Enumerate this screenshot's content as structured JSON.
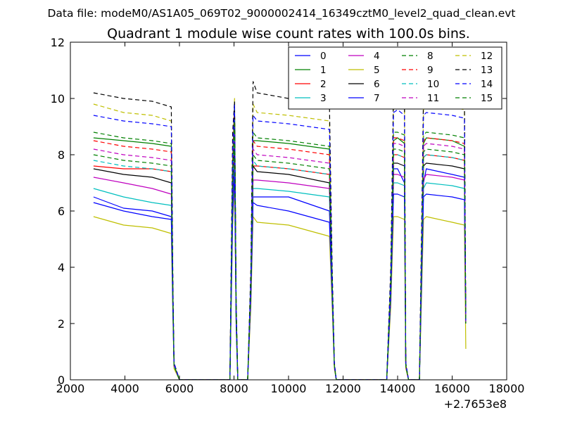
{
  "chart_data": {
    "type": "line",
    "suptitle": "Data file: modeM0/AS1A05_069T02_9000002414_16349cztM0_level2_quad_clean.evt",
    "title": "Quadrant 1 module wise count rates with 100.0s bins.",
    "xlabel": "",
    "ylabel": "",
    "xlim": [
      2000,
      18000
    ],
    "ylim": [
      0,
      12
    ],
    "x_offset_label": "+2.7653e8",
    "x_ticks": [
      2000,
      4000,
      6000,
      8000,
      10000,
      12000,
      14000,
      16000,
      18000
    ],
    "x_tick_labels": [
      "2000",
      "4000",
      "6000",
      "8000",
      "10000",
      "12000",
      "14000",
      "16000",
      "18000"
    ],
    "y_ticks": [
      0,
      2,
      4,
      6,
      8,
      10,
      12
    ],
    "y_tick_labels": [
      "0",
      "2",
      "4",
      "6",
      "8",
      "10",
      "12"
    ],
    "grid": false,
    "legend_placement": "top-right",
    "legend_columns": 4,
    "x": [
      2850,
      3950,
      5000,
      5700,
      5760,
      5800,
      6000,
      7850,
      7950,
      8020,
      8080,
      8140,
      8200,
      8400,
      8500,
      8620,
      8700,
      8850,
      10000,
      11500,
      11600,
      11680,
      11750,
      12000,
      13600,
      13750,
      13850,
      14000,
      14250,
      14300,
      14400,
      14800,
      14950,
      15050,
      16000,
      16450,
      16500
    ],
    "series": [
      {
        "name": "0",
        "color": "#0000ff",
        "dash": "solid",
        "values": [
          6.5,
          6.1,
          6.0,
          5.8,
          2.5,
          0.5,
          0.0,
          0.0,
          6.0,
          7.5,
          2.0,
          0.0,
          0.0,
          0.0,
          0.0,
          3.0,
          6.5,
          6.5,
          6.5,
          6.0,
          3.0,
          0.5,
          0.0,
          0.0,
          0.0,
          3.0,
          7.5,
          7.5,
          7.0,
          0.5,
          0.0,
          0.0,
          7.0,
          7.5,
          7.3,
          7.2,
          2.0
        ]
      },
      {
        "name": "1",
        "color": "#008000",
        "dash": "solid",
        "values": [
          8.6,
          8.5,
          8.4,
          8.3,
          3.0,
          0.5,
          0.0,
          0.0,
          7.5,
          9.8,
          2.5,
          0.0,
          0.0,
          0.0,
          0.0,
          3.5,
          8.5,
          8.5,
          8.4,
          8.2,
          3.5,
          0.5,
          0.0,
          0.0,
          0.0,
          3.5,
          8.5,
          8.6,
          8.4,
          0.5,
          0.0,
          0.0,
          8.4,
          8.6,
          8.5,
          8.3,
          2.0
        ]
      },
      {
        "name": "2",
        "color": "#ff0000",
        "dash": "solid",
        "values": [
          7.6,
          7.5,
          7.5,
          7.4,
          2.8,
          0.5,
          0.0,
          0.0,
          7.0,
          9.0,
          2.2,
          0.0,
          0.0,
          0.0,
          0.0,
          3.2,
          7.6,
          7.6,
          7.5,
          7.3,
          3.2,
          0.5,
          0.0,
          0.0,
          0.0,
          3.2,
          8.0,
          8.0,
          7.9,
          0.5,
          0.0,
          0.0,
          7.9,
          8.0,
          7.9,
          7.8,
          2.0
        ]
      },
      {
        "name": "3",
        "color": "#00bfbf",
        "dash": "solid",
        "values": [
          6.8,
          6.5,
          6.3,
          6.2,
          2.5,
          0.5,
          0.0,
          0.0,
          6.3,
          8.0,
          2.0,
          0.0,
          0.0,
          0.0,
          0.0,
          3.0,
          6.8,
          6.8,
          6.7,
          6.5,
          3.0,
          0.5,
          0.0,
          0.0,
          0.0,
          3.0,
          7.0,
          7.0,
          6.9,
          0.5,
          0.0,
          0.0,
          6.8,
          7.0,
          6.9,
          6.8,
          2.0
        ]
      },
      {
        "name": "4",
        "color": "#bf00bf",
        "dash": "solid",
        "values": [
          7.2,
          7.0,
          6.8,
          6.6,
          2.6,
          0.5,
          0.0,
          0.0,
          6.6,
          8.4,
          2.1,
          0.0,
          0.0,
          0.0,
          0.0,
          3.1,
          7.1,
          7.1,
          7.0,
          6.8,
          3.1,
          0.5,
          0.0,
          0.0,
          0.0,
          3.1,
          7.3,
          7.3,
          7.2,
          0.5,
          0.0,
          0.0,
          7.1,
          7.3,
          7.2,
          7.1,
          2.0
        ]
      },
      {
        "name": "5",
        "color": "#bfbf00",
        "dash": "solid",
        "values": [
          5.8,
          5.5,
          5.4,
          5.2,
          2.2,
          0.4,
          0.0,
          0.0,
          5.5,
          7.0,
          1.8,
          0.0,
          0.0,
          0.0,
          0.0,
          2.6,
          5.8,
          5.6,
          5.5,
          5.1,
          2.6,
          0.4,
          0.0,
          0.0,
          0.0,
          2.6,
          5.8,
          5.8,
          5.7,
          0.4,
          0.0,
          0.0,
          5.7,
          5.8,
          5.6,
          5.5,
          1.1
        ]
      },
      {
        "name": "6",
        "color": "#000000",
        "dash": "solid",
        "values": [
          7.5,
          7.3,
          7.2,
          7.0,
          2.7,
          0.5,
          0.0,
          0.0,
          6.8,
          8.6,
          2.2,
          0.0,
          0.0,
          0.0,
          0.0,
          3.2,
          7.6,
          7.4,
          7.3,
          7.0,
          3.2,
          0.5,
          0.0,
          0.0,
          0.0,
          3.2,
          7.7,
          7.7,
          7.6,
          0.5,
          0.0,
          0.0,
          7.6,
          7.7,
          7.6,
          7.5,
          2.0
        ]
      },
      {
        "name": "7",
        "color": "#0000ff",
        "dash": "solid",
        "values": [
          6.3,
          6.0,
          5.8,
          5.7,
          2.4,
          0.5,
          0.0,
          0.0,
          5.8,
          7.4,
          1.9,
          0.0,
          0.0,
          0.0,
          0.0,
          2.9,
          6.3,
          6.2,
          6.0,
          5.6,
          2.9,
          0.5,
          0.0,
          0.0,
          0.0,
          2.9,
          6.6,
          6.6,
          6.5,
          0.5,
          0.0,
          0.0,
          6.5,
          6.6,
          6.5,
          6.4,
          2.0
        ]
      },
      {
        "name": "8",
        "color": "#008000",
        "dash": "dashed",
        "values": [
          8.8,
          8.6,
          8.5,
          8.4,
          3.0,
          0.5,
          0.0,
          0.0,
          7.8,
          9.9,
          2.5,
          0.0,
          0.0,
          0.0,
          0.0,
          3.5,
          8.8,
          8.6,
          8.5,
          8.3,
          3.5,
          0.5,
          0.0,
          0.0,
          0.0,
          3.5,
          8.8,
          8.8,
          8.7,
          0.5,
          0.0,
          0.0,
          8.7,
          8.8,
          8.7,
          8.6,
          2.0
        ]
      },
      {
        "name": "9",
        "color": "#ff0000",
        "dash": "dashed",
        "values": [
          8.5,
          8.3,
          8.2,
          8.1,
          3.0,
          0.5,
          0.0,
          0.0,
          7.6,
          9.6,
          2.4,
          0.0,
          0.0,
          0.0,
          0.0,
          3.4,
          8.5,
          8.3,
          8.2,
          8.0,
          3.4,
          0.5,
          0.0,
          0.0,
          0.0,
          3.4,
          8.6,
          8.6,
          8.5,
          0.5,
          0.0,
          0.0,
          8.5,
          8.6,
          8.5,
          8.4,
          2.0
        ]
      },
      {
        "name": "10",
        "color": "#00bfbf",
        "dash": "dashed",
        "values": [
          7.8,
          7.6,
          7.5,
          7.4,
          2.8,
          0.5,
          0.0,
          0.0,
          7.0,
          9.0,
          2.2,
          0.0,
          0.0,
          0.0,
          0.0,
          3.2,
          7.8,
          7.6,
          7.5,
          7.3,
          3.2,
          0.5,
          0.0,
          0.0,
          0.0,
          3.2,
          8.0,
          8.0,
          7.9,
          0.5,
          0.0,
          0.0,
          7.9,
          8.0,
          7.9,
          7.8,
          2.0
        ]
      },
      {
        "name": "11",
        "color": "#bf00bf",
        "dash": "dashed",
        "values": [
          8.2,
          8.0,
          7.9,
          7.8,
          2.9,
          0.5,
          0.0,
          0.0,
          7.3,
          9.3,
          2.3,
          0.0,
          0.0,
          0.0,
          0.0,
          3.3,
          8.2,
          8.0,
          7.9,
          7.7,
          3.3,
          0.5,
          0.0,
          0.0,
          0.0,
          3.3,
          8.4,
          8.4,
          8.3,
          0.5,
          0.0,
          0.0,
          8.3,
          8.4,
          8.3,
          8.2,
          2.0
        ]
      },
      {
        "name": "12",
        "color": "#bfbf00",
        "dash": "dashed",
        "values": [
          9.8,
          9.5,
          9.4,
          9.2,
          3.3,
          0.6,
          0.0,
          0.0,
          8.5,
          10.0,
          2.7,
          0.0,
          0.0,
          0.0,
          0.0,
          3.8,
          9.8,
          9.5,
          9.4,
          9.2,
          3.8,
          0.6,
          0.0,
          0.0,
          0.0,
          3.8,
          9.8,
          9.8,
          9.7,
          0.6,
          0.0,
          0.0,
          9.6,
          9.8,
          9.7,
          9.6,
          2.0
        ]
      },
      {
        "name": "13",
        "color": "#000000",
        "dash": "dashed",
        "values": [
          10.2,
          10.0,
          9.9,
          9.7,
          3.4,
          0.6,
          0.0,
          0.0,
          8.8,
          9.9,
          2.8,
          0.0,
          0.0,
          0.0,
          0.0,
          4.0,
          10.6,
          10.2,
          10.0,
          9.8,
          4.0,
          0.6,
          0.0,
          0.0,
          0.0,
          4.0,
          10.4,
          10.5,
          10.3,
          0.6,
          0.0,
          0.0,
          10.2,
          10.4,
          10.3,
          10.2,
          2.0
        ]
      },
      {
        "name": "14",
        "color": "#0000ff",
        "dash": "dashed",
        "values": [
          9.4,
          9.2,
          9.1,
          9.0,
          3.2,
          0.6,
          0.0,
          0.0,
          8.2,
          9.8,
          2.6,
          0.0,
          0.0,
          0.0,
          0.0,
          3.7,
          9.4,
          9.2,
          9.1,
          8.9,
          3.7,
          0.6,
          0.0,
          0.0,
          0.0,
          3.7,
          9.5,
          9.6,
          9.4,
          0.6,
          0.0,
          0.0,
          9.4,
          9.5,
          9.4,
          9.3,
          2.0
        ]
      },
      {
        "name": "15",
        "color": "#008000",
        "dash": "dashed",
        "values": [
          8.0,
          7.8,
          7.7,
          7.6,
          2.9,
          0.5,
          0.0,
          0.0,
          7.2,
          9.2,
          2.3,
          0.0,
          0.0,
          0.0,
          0.0,
          3.3,
          8.0,
          7.8,
          7.7,
          7.5,
          3.3,
          0.5,
          0.0,
          0.0,
          0.0,
          3.3,
          8.2,
          8.2,
          8.1,
          0.5,
          0.0,
          0.0,
          8.1,
          8.2,
          8.1,
          8.0,
          2.0
        ]
      }
    ]
  }
}
